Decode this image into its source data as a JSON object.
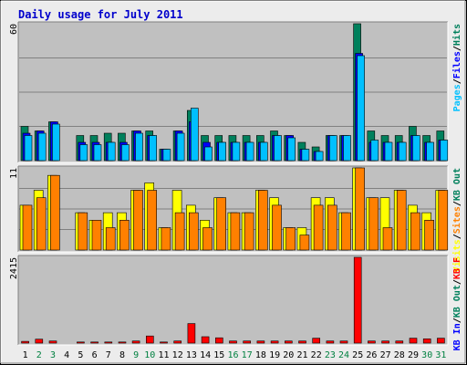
{
  "chart_data": {
    "type": "bar",
    "title": "Daily usage for July 2011",
    "categories": [
      "1",
      "2",
      "3",
      "4",
      "5",
      "6",
      "7",
      "8",
      "9",
      "10",
      "11",
      "12",
      "13",
      "14",
      "15",
      "16",
      "17",
      "18",
      "19",
      "20",
      "21",
      "22",
      "23",
      "24",
      "25",
      "26",
      "27",
      "28",
      "29",
      "30",
      "31"
    ],
    "weekend_days": [
      "2",
      "3",
      "9",
      "10",
      "16",
      "17",
      "23",
      "24",
      "30",
      "31"
    ],
    "colors": {
      "background": "#ececec",
      "panel": "#c0c0c0",
      "title": "#0000cc",
      "weekend_label": "#008040",
      "hits": "#00805c",
      "files": "#0000ff",
      "pages": "#00c0ff",
      "visits": "#ffff00",
      "sites": "#ff8000",
      "kb_in": "#0000ff",
      "kb_out": "#00805c",
      "kb_f": "#ff0000"
    },
    "panels": [
      {
        "ymax_label": "60",
        "ylim": [
          0,
          60
        ],
        "legend": [
          {
            "label": "Pages",
            "color": "#00c0ff"
          },
          {
            "label": "/",
            "color": "#000000"
          },
          {
            "label": "Files",
            "color": "#0000ff"
          },
          {
            "label": "/",
            "color": "#000000"
          },
          {
            "label": "Hits",
            "color": "#00805c"
          }
        ],
        "series": [
          {
            "name": "Hits",
            "values": [
              15,
              13,
              17,
              0,
              11,
              11,
              12,
              12,
              13,
              13,
              5,
              13,
              22,
              11,
              11,
              11,
              11,
              11,
              13,
              11,
              8,
              6,
              11,
              11,
              60,
              13,
              11,
              11,
              15,
              11,
              13
            ]
          },
          {
            "name": "Files",
            "values": [
              12,
              13,
              17,
              0,
              8,
              8,
              8,
              8,
              13,
              11,
              5,
              13,
              17,
              8,
              8,
              8,
              8,
              8,
              11,
              11,
              5,
              4,
              11,
              11,
              47,
              8,
              8,
              8,
              11,
              8,
              9
            ]
          },
          {
            "name": "Pages",
            "values": [
              11,
              12,
              16,
              0,
              7,
              7,
              8,
              7,
              12,
              11,
              5,
              12,
              23,
              6,
              8,
              8,
              8,
              8,
              11,
              10,
              5,
              4,
              11,
              11,
              46,
              9,
              8,
              8,
              11,
              8,
              9
            ]
          }
        ]
      },
      {
        "ymax_label": "11",
        "ylim": [
          0,
          11
        ],
        "legend": [
          {
            "label": "Visits",
            "color": "#ffff00"
          },
          {
            "label": "/",
            "color": "#000000"
          },
          {
            "label": "Sites",
            "color": "#ff8000"
          },
          {
            "label": "/",
            "color": "#000000"
          },
          {
            "label": "KB Out",
            "color": "#00805c"
          }
        ],
        "series": [
          {
            "name": "Visits",
            "values": [
              6,
              8,
              10,
              0,
              5,
              4,
              5,
              5,
              8,
              9,
              3,
              8,
              6,
              4,
              7,
              5,
              5,
              8,
              7,
              3,
              3,
              7,
              7,
              5,
              11,
              7,
              7,
              8,
              6,
              5,
              8
            ]
          },
          {
            "name": "Sites",
            "values": [
              6,
              7,
              10,
              0,
              5,
              4,
              3,
              4,
              8,
              8,
              3,
              5,
              5,
              3,
              7,
              5,
              5,
              8,
              6,
              3,
              2,
              6,
              6,
              5,
              11,
              7,
              3,
              8,
              5,
              4,
              8
            ]
          }
        ]
      },
      {
        "ymax_label": "2415",
        "ylim": [
          0,
          2415
        ],
        "legend": [
          {
            "label": "KB In",
            "color": "#0000ff"
          },
          {
            "label": "/",
            "color": "#000000"
          },
          {
            "label": "KB Out",
            "color": "#00805c"
          },
          {
            "label": "/",
            "color": "#000000"
          },
          {
            "label": "KB F",
            "color": "#ff0000"
          }
        ],
        "series": [
          {
            "name": "KB F",
            "values": [
              50,
              110,
              60,
              0,
              30,
              30,
              30,
              30,
              60,
              200,
              30,
              60,
              550,
              180,
              150,
              60,
              60,
              60,
              60,
              60,
              60,
              140,
              60,
              60,
              2415,
              60,
              60,
              60,
              140,
              120,
              140
            ]
          }
        ]
      }
    ]
  }
}
